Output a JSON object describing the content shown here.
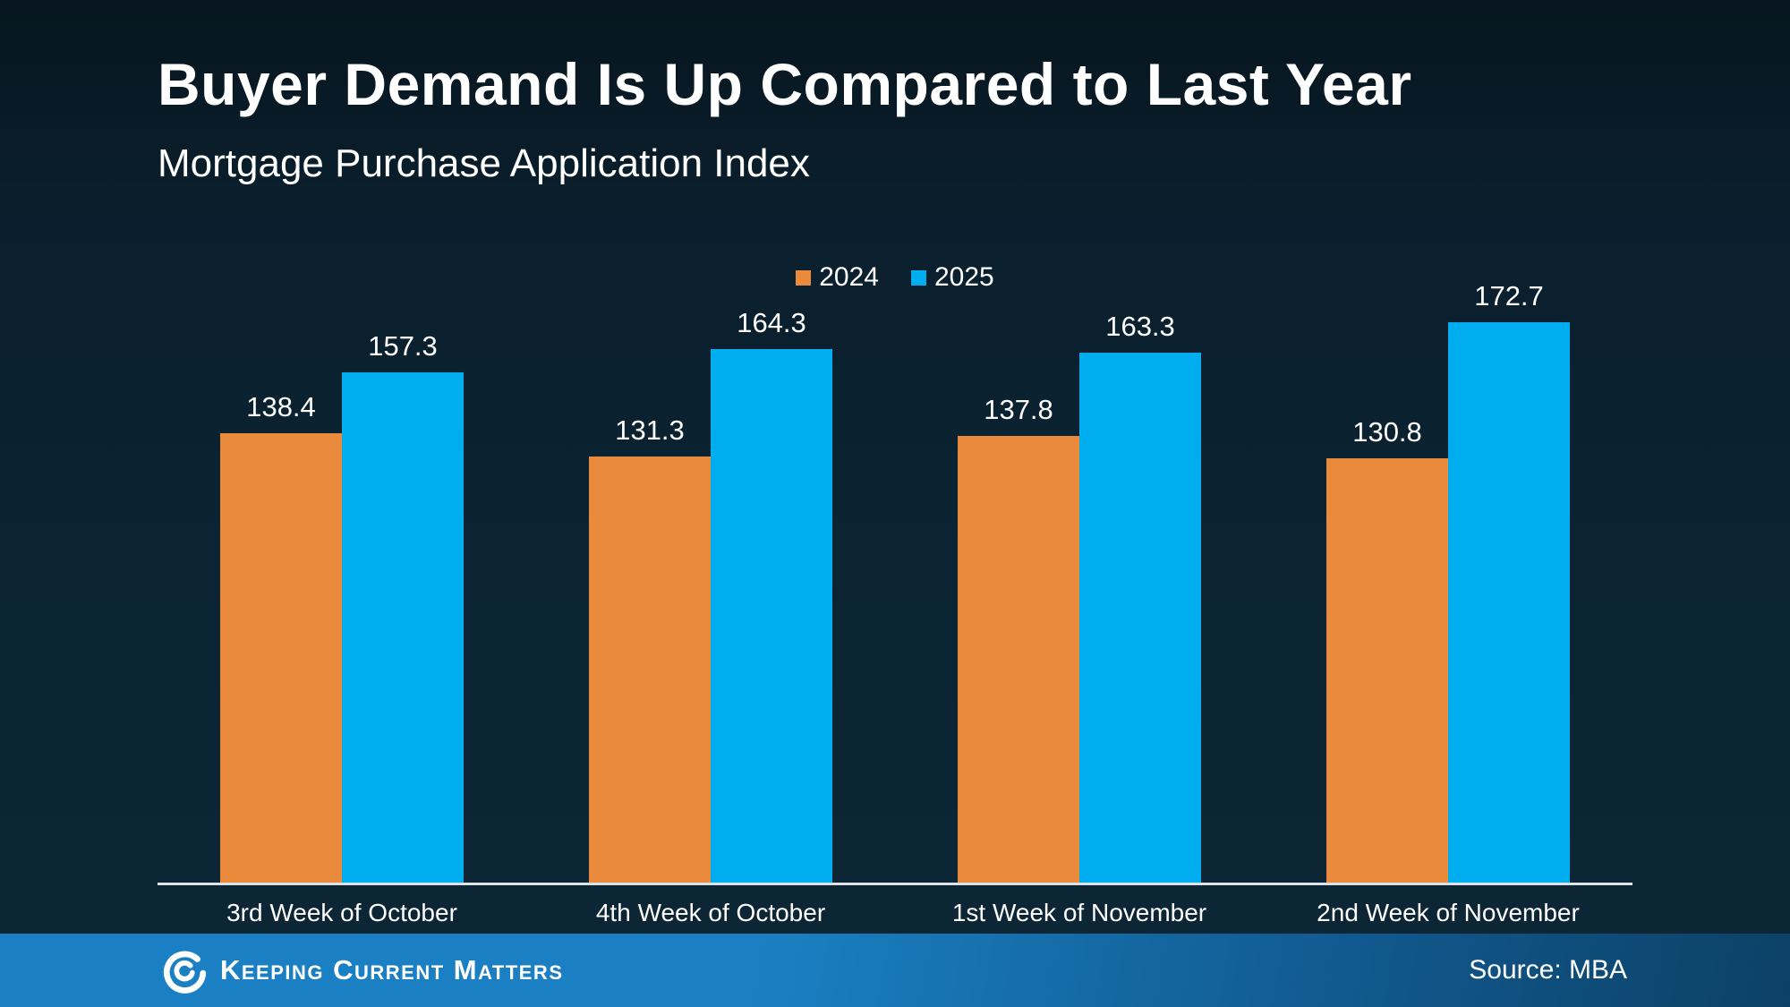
{
  "slide": {
    "title": "Buyer Demand Is Up Compared to Last Year",
    "subtitle": "Mortgage Purchase Application Index"
  },
  "chart_data": {
    "type": "bar",
    "title": "Buyer Demand Is Up Compared to Last Year",
    "subtitle": "Mortgage Purchase Application Index",
    "categories": [
      "3rd Week of October",
      "4th Week of October",
      "1st Week of November",
      "2nd Week of November"
    ],
    "series": [
      {
        "name": "2024",
        "color": "#E98A3C",
        "values": [
          138.4,
          131.3,
          137.8,
          130.8
        ]
      },
      {
        "name": "2025",
        "color": "#00AEEF",
        "values": [
          157.3,
          164.3,
          163.3,
          172.7
        ]
      }
    ],
    "ylim": [
      0,
      200
    ],
    "grid": false,
    "legend_position": "top-center",
    "data_labels": true,
    "axis_line_color": "#DDE2E6",
    "background_top": "#07161F",
    "background_bottom": "#0C2737"
  },
  "footer": {
    "brand": "Keeping Current Matters",
    "source_label": "Source: MBA",
    "logo_icon": "kcm-spiral-icon",
    "bar_color_left": "#1A80C3",
    "bar_color_right": "#0C4166"
  }
}
